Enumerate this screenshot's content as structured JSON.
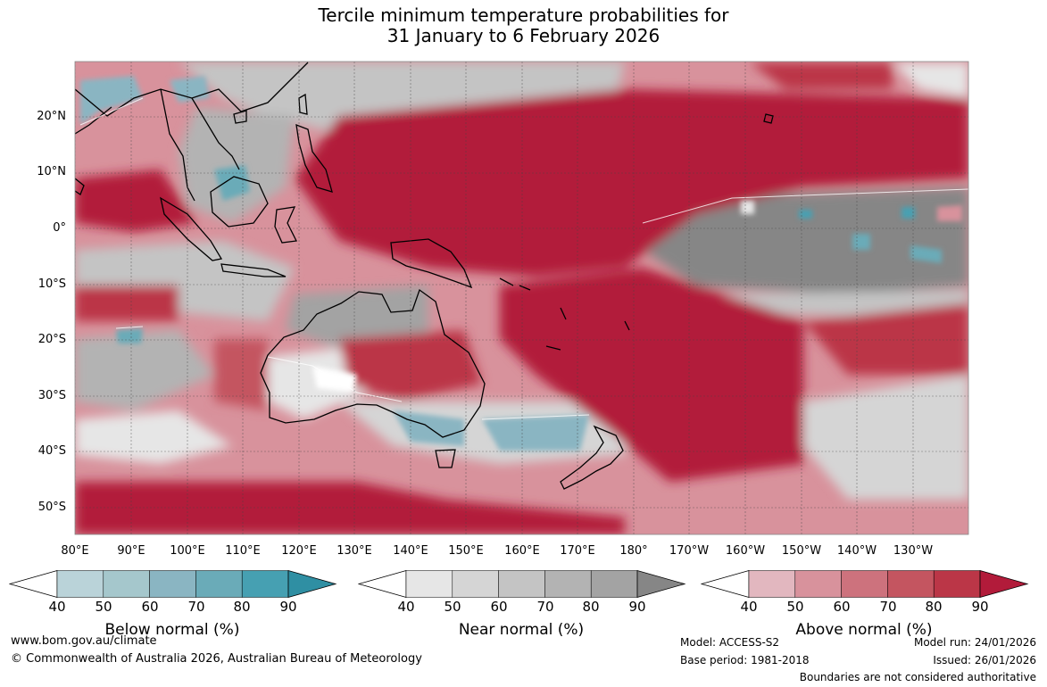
{
  "title": {
    "line1": "Tercile minimum temperature probabilities for",
    "line2": "31 January to 6 February 2026"
  },
  "latitude_labels": [
    "20°N",
    "10°N",
    "0°",
    "10°S",
    "20°S",
    "30°S",
    "40°S",
    "50°S"
  ],
  "longitude_labels": [
    "80°E",
    "90°E",
    "100°E",
    "110°E",
    "120°E",
    "130°E",
    "140°E",
    "150°E",
    "160°E",
    "170°E",
    "180°",
    "170°W",
    "160°W",
    "150°W",
    "140°W",
    "130°W"
  ],
  "colors": {
    "below": [
      "#bad3d9",
      "#a5c7cc",
      "#8ab5c2",
      "#6aabb8",
      "#46a0b2",
      "#2f8fa3"
    ],
    "near": [
      "#e6e6e6",
      "#d5d5d5",
      "#c4c4c4",
      "#b3b3b3",
      "#a3a3a3",
      "#868686"
    ],
    "above": [
      "#e2b7bf",
      "#d8929c",
      "#cd727d",
      "#c45560",
      "#bb3647",
      "#b21b3a"
    ]
  },
  "legends": [
    {
      "label": "Below normal (%)",
      "ticks": [
        "40",
        "50",
        "60",
        "70",
        "80",
        "90"
      ]
    },
    {
      "label": "Near normal (%)",
      "ticks": [
        "40",
        "50",
        "60",
        "70",
        "80",
        "90"
      ]
    },
    {
      "label": "Above normal (%)",
      "ticks": [
        "40",
        "50",
        "60",
        "70",
        "80",
        "90"
      ]
    }
  ],
  "footer": {
    "website": "www.bom.gov.au/climate",
    "copyright": "© Commonwealth of Australia 2026, Australian Bureau of Meteorology",
    "model": "Model: ACCESS-S2",
    "base_period": "Base period: 1981-2018",
    "model_run": "Model run: 24/01/2026",
    "issued": "Issued: 26/01/2026",
    "disclaimer": "Boundaries are not considered authoritative"
  }
}
